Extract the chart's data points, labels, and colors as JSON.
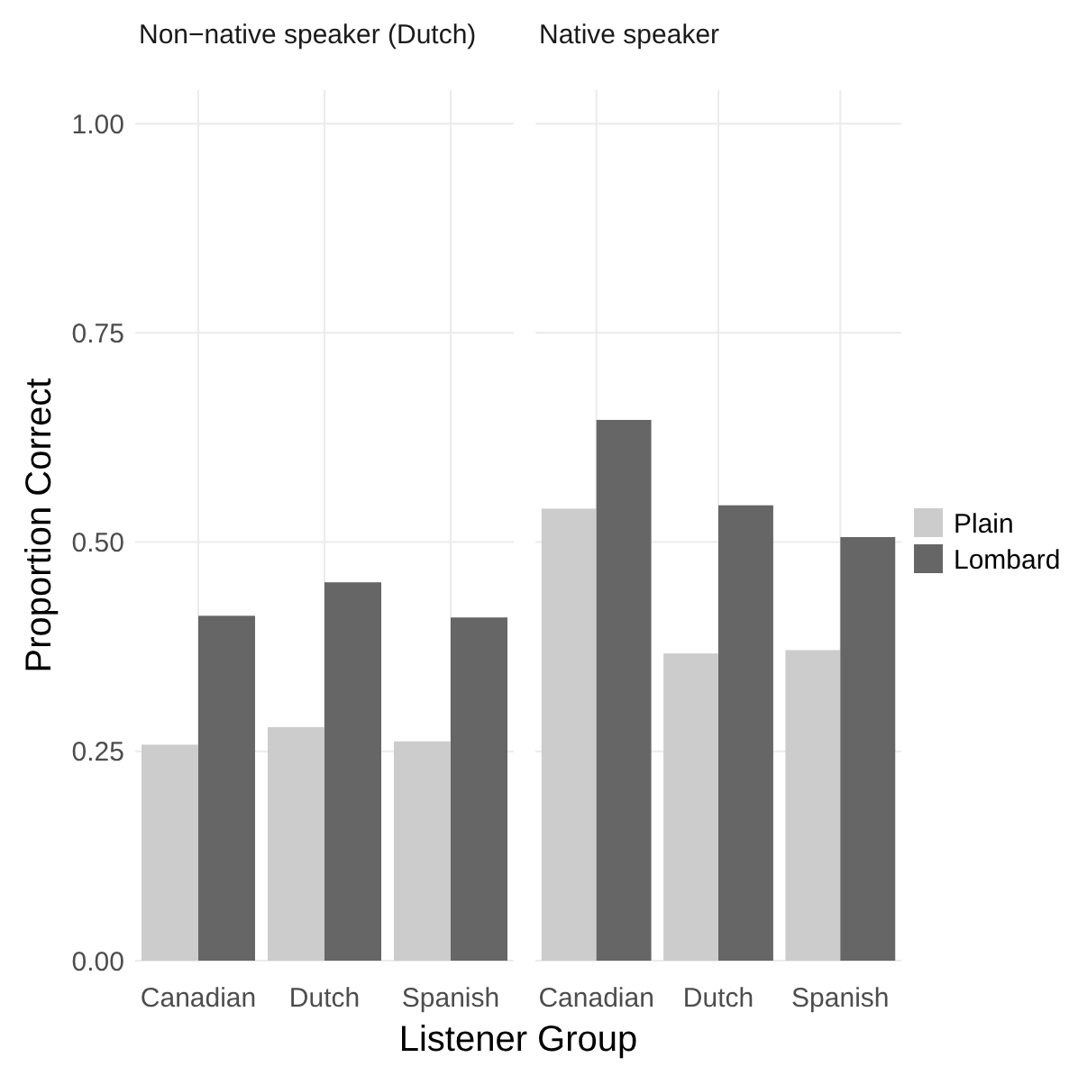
{
  "chart_data": [
    {
      "type": "bar",
      "title": "Non−native speaker (Dutch)",
      "ylabel": "Proportion Correct",
      "xlabel": "Listener Group",
      "categories": [
        "Canadian",
        "Dutch",
        "Spanish"
      ],
      "series": [
        {
          "name": "Plain",
          "color": "#cccccc",
          "values": [
            0.258,
            0.279,
            0.262
          ]
        },
        {
          "name": "Lombard",
          "color": "#666666",
          "values": [
            0.412,
            0.452,
            0.41
          ]
        }
      ],
      "ylim": [
        0,
        1.04
      ],
      "yticks": [
        {
          "value": 0,
          "label": "0.00"
        },
        {
          "value": 0.25,
          "label": "0.25"
        },
        {
          "value": 0.5,
          "label": "0.50"
        },
        {
          "value": 0.75,
          "label": "0.75"
        },
        {
          "value": 1,
          "label": "1.00"
        }
      ],
      "grid": true,
      "legend": "right"
    },
    {
      "type": "bar",
      "title": "Native speaker",
      "categories": [
        "Canadian",
        "Dutch",
        "Spanish"
      ],
      "series": [
        {
          "color": "#cccccc",
          "values": [
            0.54,
            0.367,
            0.371
          ]
        },
        {
          "color": "#666666",
          "values": [
            0.646,
            0.544,
            0.506
          ]
        }
      ],
      "ylim": [
        0,
        1.04
      ],
      "yticks": [
        0,
        0.25,
        0.5,
        0.75,
        1
      ],
      "grid": true,
      "tick_labels": "x"
    }
  ]
}
